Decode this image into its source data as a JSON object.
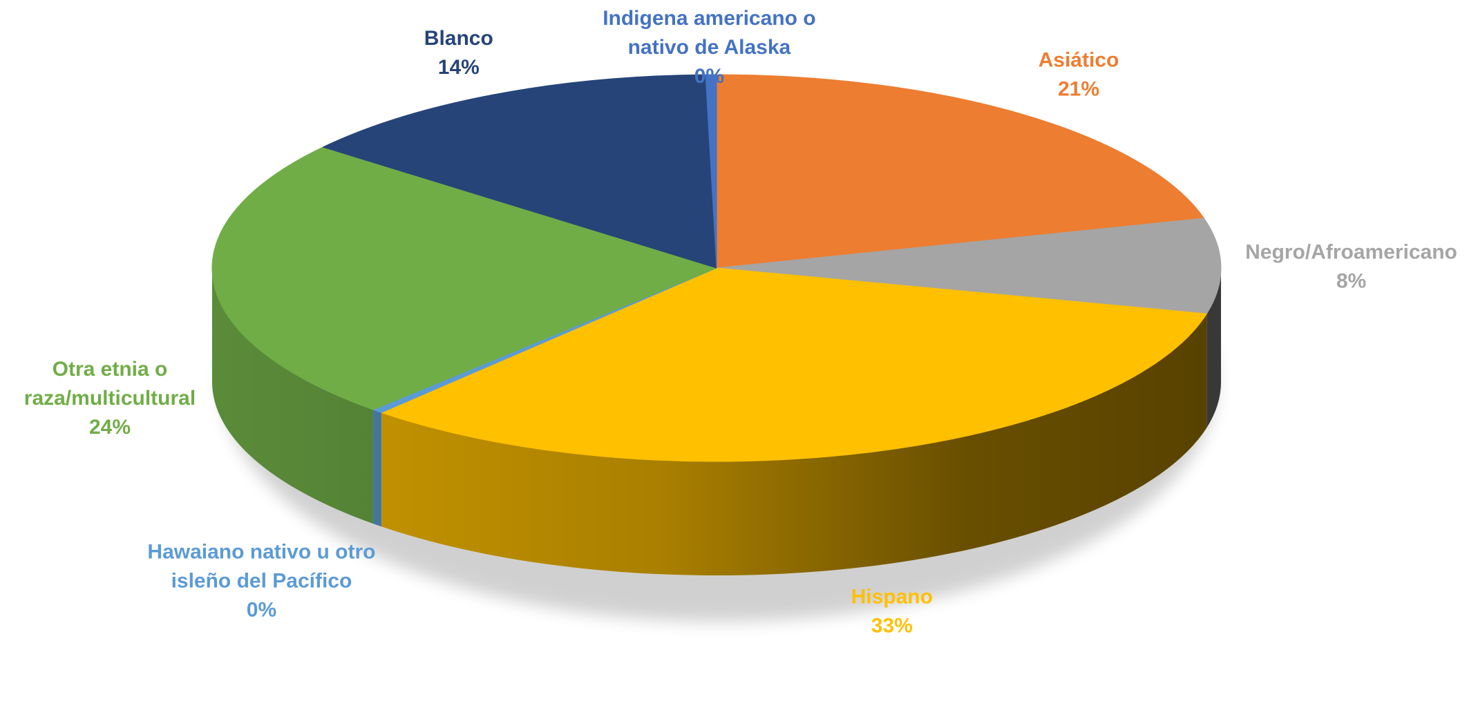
{
  "chart_data": {
    "type": "pie",
    "title": "",
    "categories": [
      "Asiático",
      "Negro/Afroamericano",
      "Hispano",
      "Hawaiano nativo u otro isleño del Pacífico",
      "Otra etnia o raza/multicultural",
      "Blanco",
      "Indigena  americano o nativo de Alaska"
    ],
    "values": [
      21,
      8,
      33,
      0,
      24,
      14,
      0
    ],
    "percent_labels": [
      "21%",
      "8%",
      "33%",
      "0%",
      "24%",
      "14%",
      "0%"
    ],
    "label_lines": [
      [
        "Asiático"
      ],
      [
        "Negro/Afroamericano"
      ],
      [
        "Hispano"
      ],
      [
        "Hawaiano nativo u otro",
        "isleño del Pacífico"
      ],
      [
        "Otra etnia o",
        "raza/multicultural"
      ],
      [
        "Blanco"
      ],
      [
        "Indigena  americano o",
        "nativo de Alaska"
      ]
    ],
    "colors": [
      "#ED7D31",
      "#A5A5A5",
      "#FFC000",
      "#5B9BD5",
      "#70AD47",
      "#264478",
      "#4472C4"
    ],
    "label_colors": [
      "#ED7D31",
      "#A5A5A5",
      "#FFC000",
      "#5B9BD5",
      "#70AD47",
      "#264478",
      "#4472C4"
    ],
    "style": "3d",
    "legend": "none"
  }
}
